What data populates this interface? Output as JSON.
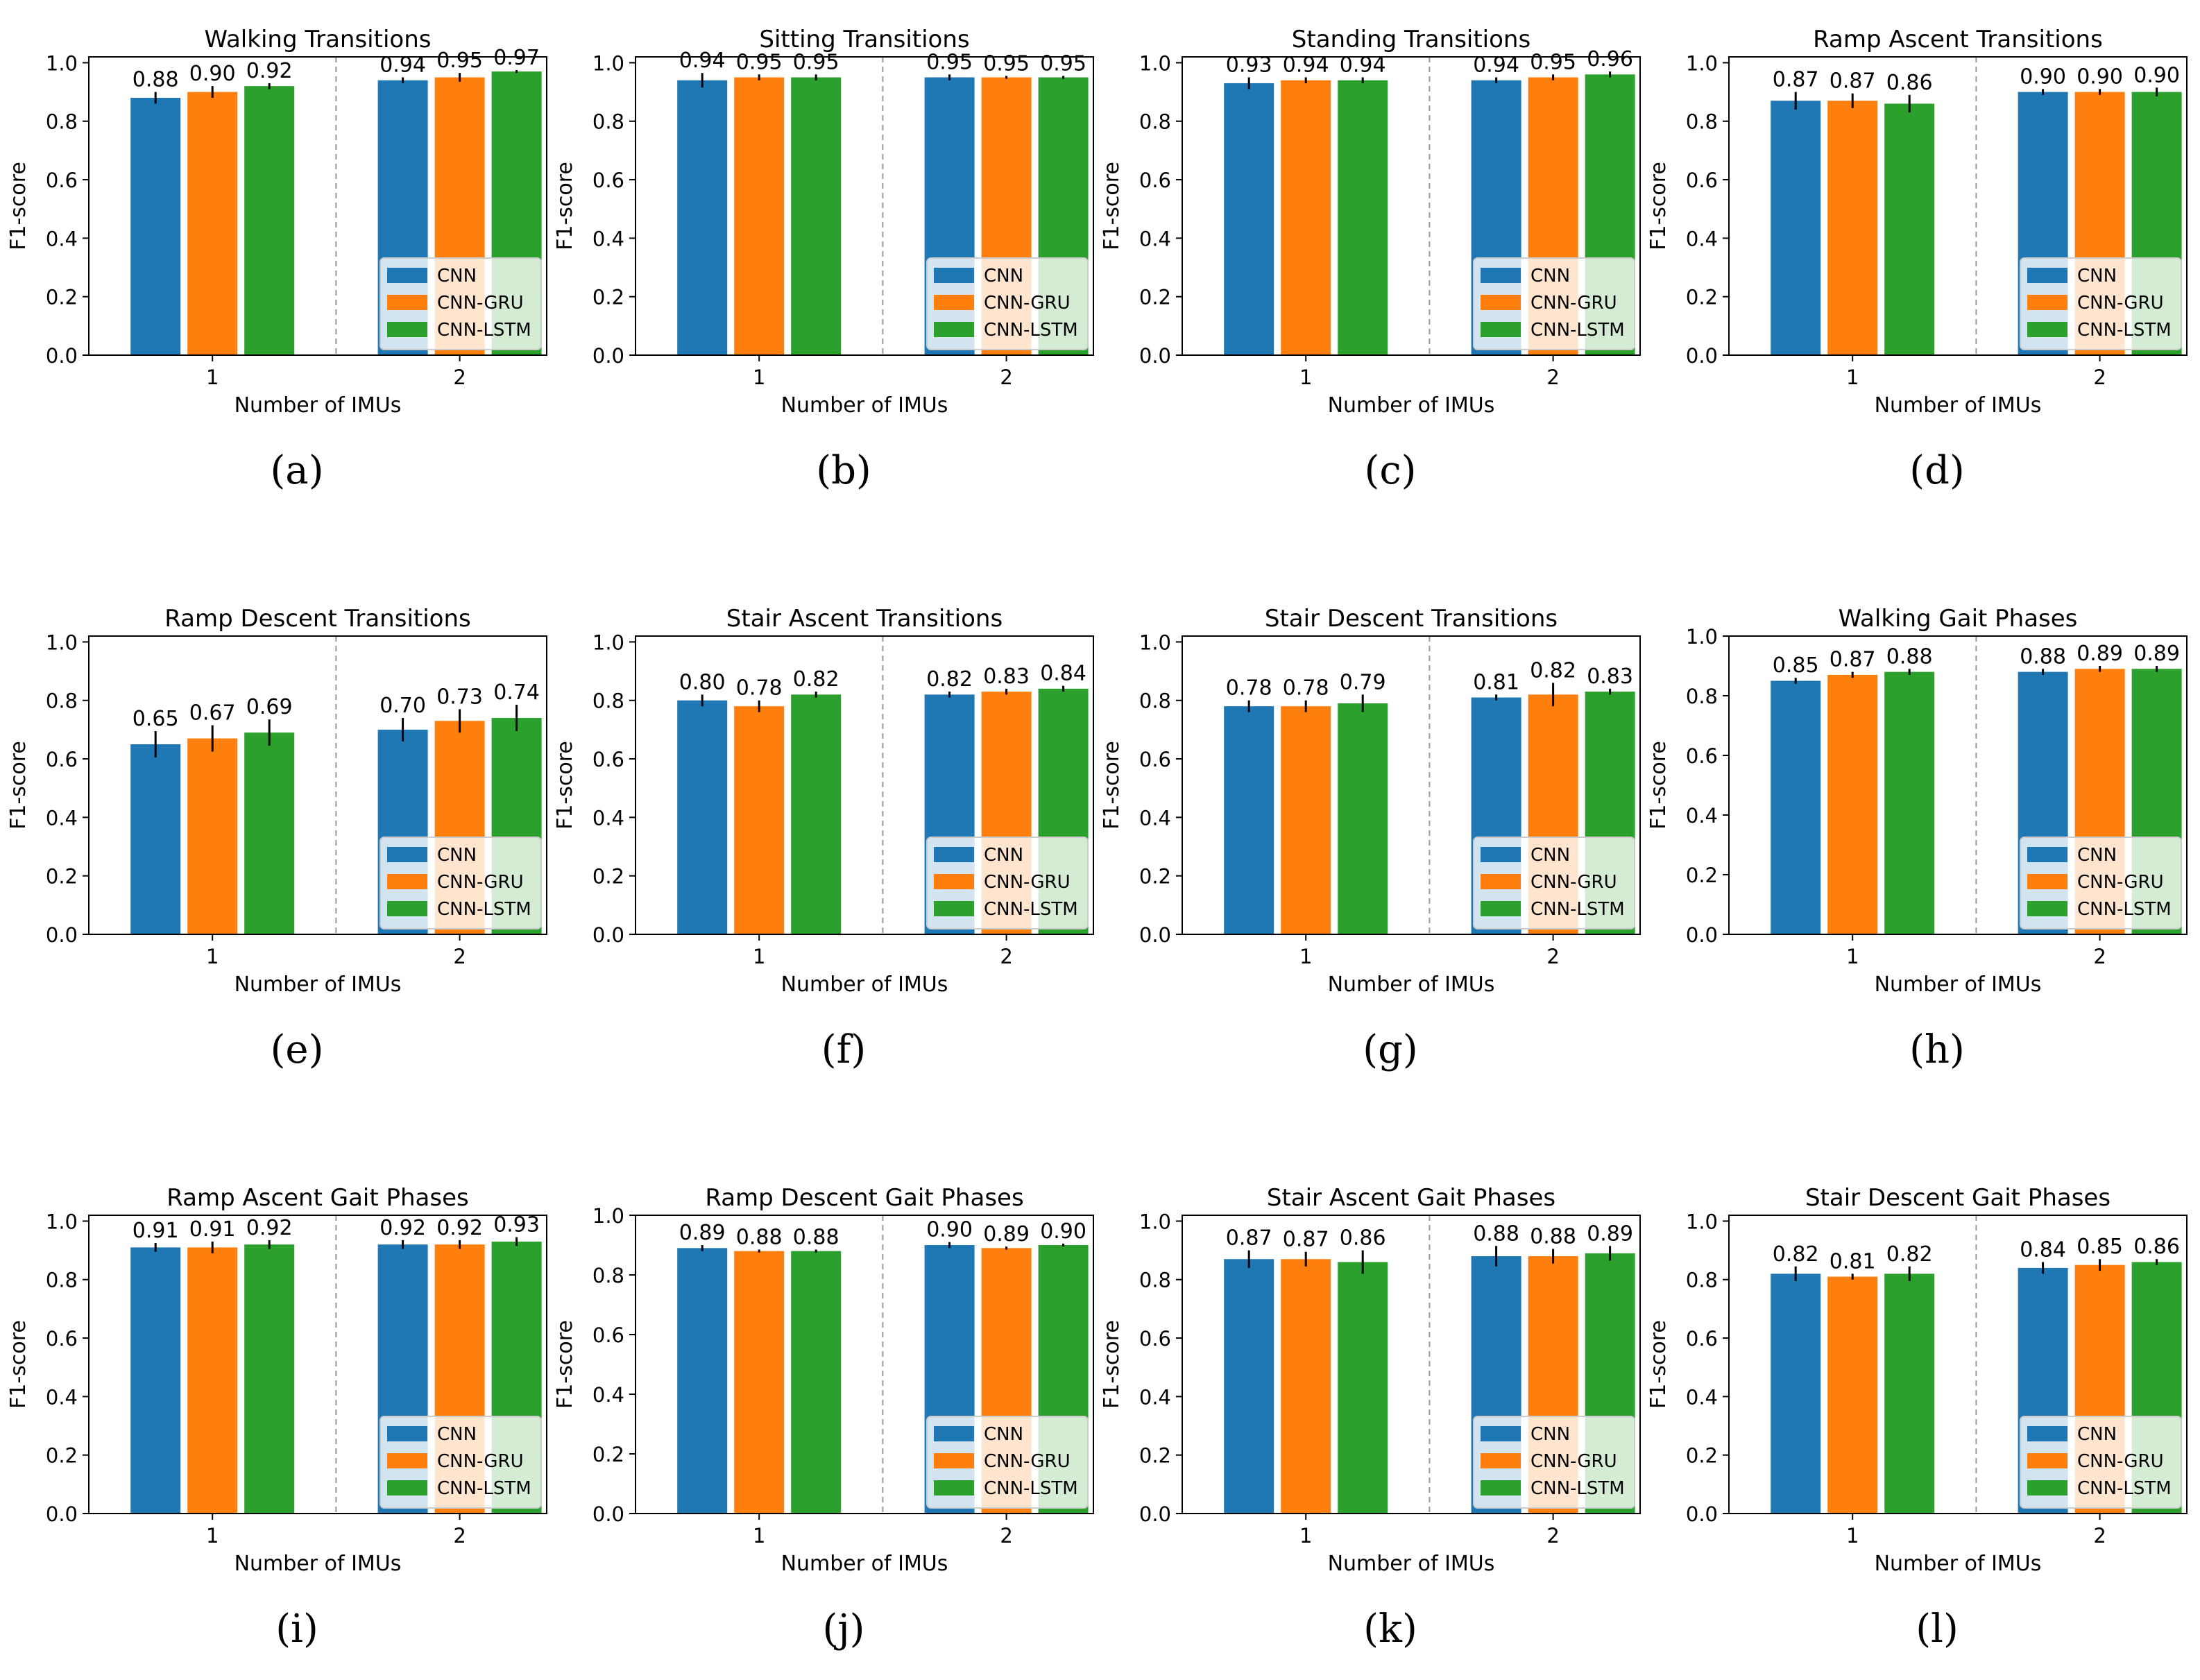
{
  "figure": {
    "series_colors": {
      "CNN": "#1f77b4",
      "CNN-GRU": "#ff7f0e",
      "CNN-LSTM": "#2ca02c"
    }
  },
  "chart_data": [
    {
      "type": "bar",
      "panel_label": "(a)",
      "title": "Walking Transitions",
      "xlabel": "Number of IMUs",
      "ylabel": "F1-score",
      "categories": [
        "1",
        "2"
      ],
      "ylim": [
        0,
        1.02
      ],
      "yticks": [
        "0.0",
        "0.2",
        "0.4",
        "0.6",
        "0.8",
        "1.0"
      ],
      "legend": "lower-right",
      "series": [
        {
          "name": "CNN",
          "values": [
            0.88,
            0.94
          ],
          "errors": [
            0.02,
            0.01
          ]
        },
        {
          "name": "CNN-GRU",
          "values": [
            0.9,
            0.95
          ],
          "errors": [
            0.02,
            0.015
          ]
        },
        {
          "name": "CNN-LSTM",
          "values": [
            0.92,
            0.97
          ],
          "errors": [
            0.01,
            0.005
          ]
        }
      ]
    },
    {
      "type": "bar",
      "panel_label": "(b)",
      "title": "Sitting Transitions",
      "xlabel": "Number of IMUs",
      "ylabel": "F1-score",
      "categories": [
        "1",
        "2"
      ],
      "ylim": [
        0,
        1.02
      ],
      "yticks": [
        "0.0",
        "0.2",
        "0.4",
        "0.6",
        "0.8",
        "1.0"
      ],
      "legend": "lower-right",
      "series": [
        {
          "name": "CNN",
          "values": [
            0.94,
            0.95
          ],
          "errors": [
            0.025,
            0.01
          ]
        },
        {
          "name": "CNN-GRU",
          "values": [
            0.95,
            0.95
          ],
          "errors": [
            0.01,
            0.005
          ]
        },
        {
          "name": "CNN-LSTM",
          "values": [
            0.95,
            0.95
          ],
          "errors": [
            0.01,
            0.005
          ]
        }
      ]
    },
    {
      "type": "bar",
      "panel_label": "(c)",
      "title": "Standing Transitions",
      "xlabel": "Number of IMUs",
      "ylabel": "F1-score",
      "categories": [
        "1",
        "2"
      ],
      "ylim": [
        0,
        1.02
      ],
      "yticks": [
        "0.0",
        "0.2",
        "0.4",
        "0.6",
        "0.8",
        "1.0"
      ],
      "legend": "lower-right",
      "series": [
        {
          "name": "CNN",
          "values": [
            0.93,
            0.94
          ],
          "errors": [
            0.02,
            0.01
          ]
        },
        {
          "name": "CNN-GRU",
          "values": [
            0.94,
            0.95
          ],
          "errors": [
            0.01,
            0.01
          ]
        },
        {
          "name": "CNN-LSTM",
          "values": [
            0.94,
            0.96
          ],
          "errors": [
            0.01,
            0.01
          ]
        }
      ]
    },
    {
      "type": "bar",
      "panel_label": "(d)",
      "title": "Ramp Ascent Transitions",
      "xlabel": "Number of IMUs",
      "ylabel": "F1-score",
      "categories": [
        "1",
        "2"
      ],
      "ylim": [
        0,
        1.02
      ],
      "yticks": [
        "0.0",
        "0.2",
        "0.4",
        "0.6",
        "0.8",
        "1.0"
      ],
      "legend": "lower-right",
      "series": [
        {
          "name": "CNN",
          "values": [
            0.87,
            0.9
          ],
          "errors": [
            0.03,
            0.01
          ]
        },
        {
          "name": "CNN-GRU",
          "values": [
            0.87,
            0.9
          ],
          "errors": [
            0.025,
            0.01
          ]
        },
        {
          "name": "CNN-LSTM",
          "values": [
            0.86,
            0.9
          ],
          "errors": [
            0.03,
            0.015
          ]
        }
      ]
    },
    {
      "type": "bar",
      "panel_label": "(e)",
      "title": "Ramp Descent Transitions",
      "xlabel": "Number of IMUs",
      "ylabel": "F1-score",
      "categories": [
        "1",
        "2"
      ],
      "ylim": [
        0,
        1.02
      ],
      "yticks": [
        "0.0",
        "0.2",
        "0.4",
        "0.6",
        "0.8",
        "1.0"
      ],
      "legend": "lower-right",
      "series": [
        {
          "name": "CNN",
          "values": [
            0.65,
            0.7
          ],
          "errors": [
            0.045,
            0.04
          ]
        },
        {
          "name": "CNN-GRU",
          "values": [
            0.67,
            0.73
          ],
          "errors": [
            0.045,
            0.04
          ]
        },
        {
          "name": "CNN-LSTM",
          "values": [
            0.69,
            0.74
          ],
          "errors": [
            0.045,
            0.045
          ]
        }
      ]
    },
    {
      "type": "bar",
      "panel_label": "(f)",
      "title": "Stair Ascent Transitions",
      "xlabel": "Number of IMUs",
      "ylabel": "F1-score",
      "categories": [
        "1",
        "2"
      ],
      "ylim": [
        0,
        1.02
      ],
      "yticks": [
        "0.0",
        "0.2",
        "0.4",
        "0.6",
        "0.8",
        "1.0"
      ],
      "legend": "lower-right",
      "series": [
        {
          "name": "CNN",
          "values": [
            0.8,
            0.82
          ],
          "errors": [
            0.02,
            0.01
          ]
        },
        {
          "name": "CNN-GRU",
          "values": [
            0.78,
            0.83
          ],
          "errors": [
            0.02,
            0.01
          ]
        },
        {
          "name": "CNN-LSTM",
          "values": [
            0.82,
            0.84
          ],
          "errors": [
            0.01,
            0.01
          ]
        }
      ]
    },
    {
      "type": "bar",
      "panel_label": "(g)",
      "title": "Stair Descent Transitions",
      "xlabel": "Number of IMUs",
      "ylabel": "F1-score",
      "categories": [
        "1",
        "2"
      ],
      "ylim": [
        0,
        1.02
      ],
      "yticks": [
        "0.0",
        "0.2",
        "0.4",
        "0.6",
        "0.8",
        "1.0"
      ],
      "legend": "lower-right",
      "series": [
        {
          "name": "CNN",
          "values": [
            0.78,
            0.81
          ],
          "errors": [
            0.02,
            0.01
          ]
        },
        {
          "name": "CNN-GRU",
          "values": [
            0.78,
            0.82
          ],
          "errors": [
            0.02,
            0.04
          ]
        },
        {
          "name": "CNN-LSTM",
          "values": [
            0.79,
            0.83
          ],
          "errors": [
            0.03,
            0.01
          ]
        }
      ]
    },
    {
      "type": "bar",
      "panel_label": "(h)",
      "title": "Walking Gait Phases",
      "xlabel": "Number of IMUs",
      "ylabel": "F1-score",
      "categories": [
        "1",
        "2"
      ],
      "ylim": [
        0,
        1.0
      ],
      "yticks": [
        "0.0",
        "0.2",
        "0.4",
        "0.6",
        "0.8",
        "1.0"
      ],
      "legend": "lower-right",
      "series": [
        {
          "name": "CNN",
          "values": [
            0.85,
            0.88
          ],
          "errors": [
            0.01,
            0.01
          ]
        },
        {
          "name": "CNN-GRU",
          "values": [
            0.87,
            0.89
          ],
          "errors": [
            0.01,
            0.01
          ]
        },
        {
          "name": "CNN-LSTM",
          "values": [
            0.88,
            0.89
          ],
          "errors": [
            0.01,
            0.01
          ]
        }
      ]
    },
    {
      "type": "bar",
      "panel_label": "(i)",
      "title": "Ramp Ascent Gait Phases",
      "xlabel": "Number of IMUs",
      "ylabel": "F1-score",
      "categories": [
        "1",
        "2"
      ],
      "ylim": [
        0,
        1.02
      ],
      "yticks": [
        "0.0",
        "0.2",
        "0.4",
        "0.6",
        "0.8",
        "1.0"
      ],
      "legend": "lower-right",
      "series": [
        {
          "name": "CNN",
          "values": [
            0.91,
            0.92
          ],
          "errors": [
            0.015,
            0.015
          ]
        },
        {
          "name": "CNN-GRU",
          "values": [
            0.91,
            0.92
          ],
          "errors": [
            0.02,
            0.015
          ]
        },
        {
          "name": "CNN-LSTM",
          "values": [
            0.92,
            0.93
          ],
          "errors": [
            0.015,
            0.015
          ]
        }
      ]
    },
    {
      "type": "bar",
      "panel_label": "(j)",
      "title": "Ramp Descent Gait Phases",
      "xlabel": "Number of IMUs",
      "ylabel": "F1-score",
      "categories": [
        "1",
        "2"
      ],
      "ylim": [
        0,
        1.0
      ],
      "yticks": [
        "0.0",
        "0.2",
        "0.4",
        "0.6",
        "0.8",
        "1.0"
      ],
      "legend": "lower-right",
      "series": [
        {
          "name": "CNN",
          "values": [
            0.89,
            0.9
          ],
          "errors": [
            0.01,
            0.01
          ]
        },
        {
          "name": "CNN-GRU",
          "values": [
            0.88,
            0.89
          ],
          "errors": [
            0.005,
            0.005
          ]
        },
        {
          "name": "CNN-LSTM",
          "values": [
            0.88,
            0.9
          ],
          "errors": [
            0.005,
            0.005
          ]
        }
      ]
    },
    {
      "type": "bar",
      "panel_label": "(k)",
      "title": "Stair Ascent Gait Phases",
      "xlabel": "Number of IMUs",
      "ylabel": "F1-score",
      "categories": [
        "1",
        "2"
      ],
      "ylim": [
        0,
        1.02
      ],
      "yticks": [
        "0.0",
        "0.2",
        "0.4",
        "0.6",
        "0.8",
        "1.0"
      ],
      "legend": "lower-right",
      "series": [
        {
          "name": "CNN",
          "values": [
            0.87,
            0.88
          ],
          "errors": [
            0.03,
            0.035
          ]
        },
        {
          "name": "CNN-GRU",
          "values": [
            0.87,
            0.88
          ],
          "errors": [
            0.025,
            0.025
          ]
        },
        {
          "name": "CNN-LSTM",
          "values": [
            0.86,
            0.89
          ],
          "errors": [
            0.04,
            0.025
          ]
        }
      ]
    },
    {
      "type": "bar",
      "panel_label": "(l)",
      "title": "Stair Descent Gait Phases",
      "xlabel": "Number of IMUs",
      "ylabel": "F1-score",
      "categories": [
        "1",
        "2"
      ],
      "ylim": [
        0,
        1.02
      ],
      "yticks": [
        "0.0",
        "0.2",
        "0.4",
        "0.6",
        "0.8",
        "1.0"
      ],
      "legend": "lower-right",
      "series": [
        {
          "name": "CNN",
          "values": [
            0.82,
            0.84
          ],
          "errors": [
            0.025,
            0.02
          ]
        },
        {
          "name": "CNN-GRU",
          "values": [
            0.81,
            0.85
          ],
          "errors": [
            0.01,
            0.02
          ]
        },
        {
          "name": "CNN-LSTM",
          "values": [
            0.82,
            0.86
          ],
          "errors": [
            0.025,
            0.01
          ]
        }
      ]
    }
  ]
}
